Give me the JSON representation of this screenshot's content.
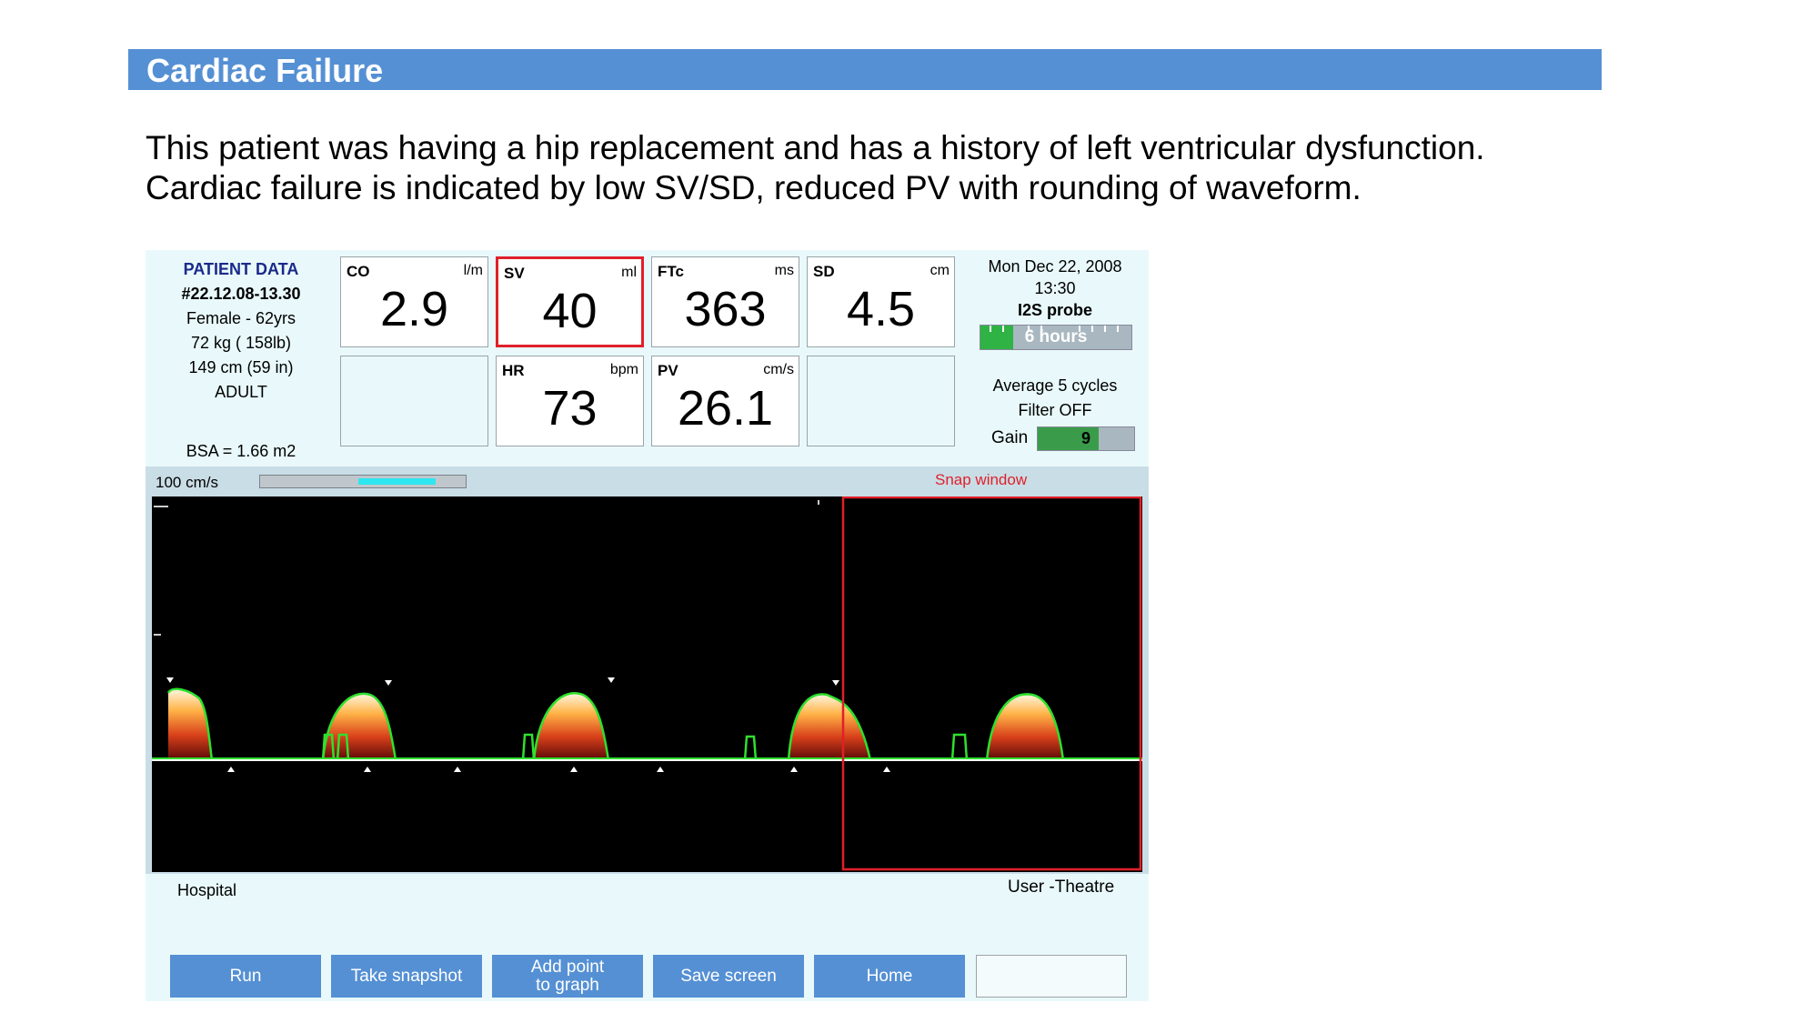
{
  "slide": {
    "title": "Cardiac Failure",
    "description_line1": "This patient was having a hip replacement and has a history of left ventricular dysfunction.",
    "description_line2": "Cardiac failure is indicated by low SV/SD, reduced PV with rounding of waveform."
  },
  "patient": {
    "heading": "PATIENT DATA",
    "id": "#22.12.08-13.30",
    "sex_age": "Female - 62yrs",
    "weight": "72 kg ( 158lb)",
    "height": "149 cm (59 in)",
    "category": "ADULT",
    "bsa": "BSA = 1.66 m2"
  },
  "metrics": {
    "co": {
      "label": "CO",
      "unit": "l/m",
      "value": "2.9"
    },
    "sv": {
      "label": "SV",
      "unit": "ml",
      "value": "40"
    },
    "ftc": {
      "label": "FTc",
      "unit": "ms",
      "value": "363"
    },
    "sd": {
      "label": "SD",
      "unit": "cm",
      "value": "4.5"
    },
    "hr": {
      "label": "HR",
      "unit": "bpm",
      "value": "73"
    },
    "pv": {
      "label": "PV",
      "unit": "cm/s",
      "value": "26.1"
    }
  },
  "status": {
    "date": "Mon Dec 22, 2008",
    "time": "13:30",
    "probe": "I2S probe",
    "probe_time": "6 hours",
    "average": "Average 5 cycles",
    "filter": "Filter OFF",
    "gain_label": "Gain",
    "gain_value": "9"
  },
  "scan": {
    "speed": "100 cm/s",
    "snap_label": "Snap window"
  },
  "footer": {
    "left": "Hospital",
    "right": "User -Theatre"
  },
  "buttons": {
    "run": "Run",
    "snapshot": "Take snapshot",
    "add_point_1": "Add point",
    "add_point_2": "to graph",
    "save": "Save screen",
    "home": "Home"
  },
  "colors": {
    "title_bar": "#5590d4",
    "panel_bg": "#e9f9fb",
    "selected_border": "#e0202a",
    "trace_outline": "#2ee02e",
    "button": "#5590d4"
  }
}
